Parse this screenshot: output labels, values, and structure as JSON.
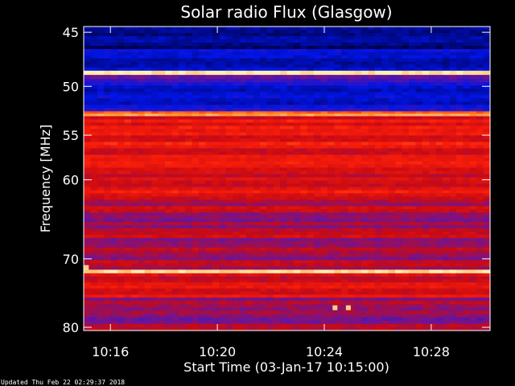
{
  "chart_data": {
    "type": "heatmap",
    "title": "Solar radio Flux (Glasgow)",
    "xlabel": "Start Time (03-Jan-17 10:15:00)",
    "ylabel": "Frequency [MHz]",
    "y_ticks": [
      "45",
      "50",
      "55",
      "60",
      "70",
      "80"
    ],
    "y_tick_values": [
      45,
      50,
      55,
      60,
      70,
      80
    ],
    "x_ticks": [
      "10:16",
      "10:20",
      "10:24",
      "10:28"
    ],
    "x_tick_minutes": [
      16,
      20,
      24,
      28
    ],
    "x_range_minutes": [
      15,
      30.2
    ],
    "y_range_mhz": [
      44.5,
      80.5
    ],
    "scale": "log",
    "bands": [
      {
        "from": 44.5,
        "to": 46.5,
        "level": 0.12
      },
      {
        "from": 46.5,
        "to": 48.5,
        "level": 0.18
      },
      {
        "from": 48.5,
        "to": 48.9,
        "level": 0.95
      },
      {
        "from": 48.9,
        "to": 49.3,
        "level": 0.35
      },
      {
        "from": 49.3,
        "to": 52.5,
        "level": 0.22
      },
      {
        "from": 52.5,
        "to": 53.0,
        "level": 0.8
      },
      {
        "from": 53.0,
        "to": 62.0,
        "level": 0.62
      },
      {
        "from": 62.0,
        "to": 71.5,
        "level": 0.5
      },
      {
        "from": 71.5,
        "to": 72.0,
        "level": 0.95
      },
      {
        "from": 72.0,
        "to": 75.5,
        "level": 0.58
      },
      {
        "from": 75.5,
        "to": 80.5,
        "level": 0.45
      }
    ],
    "hot_spots": [
      {
        "minute": 24.4,
        "mhz": 77.0
      },
      {
        "minute": 24.9,
        "mhz": 77.0
      },
      {
        "minute": 15.1,
        "mhz": 71.2
      }
    ]
  },
  "footer": {
    "updated": "Updated Thu Feb 22 02:29:37 2018"
  }
}
